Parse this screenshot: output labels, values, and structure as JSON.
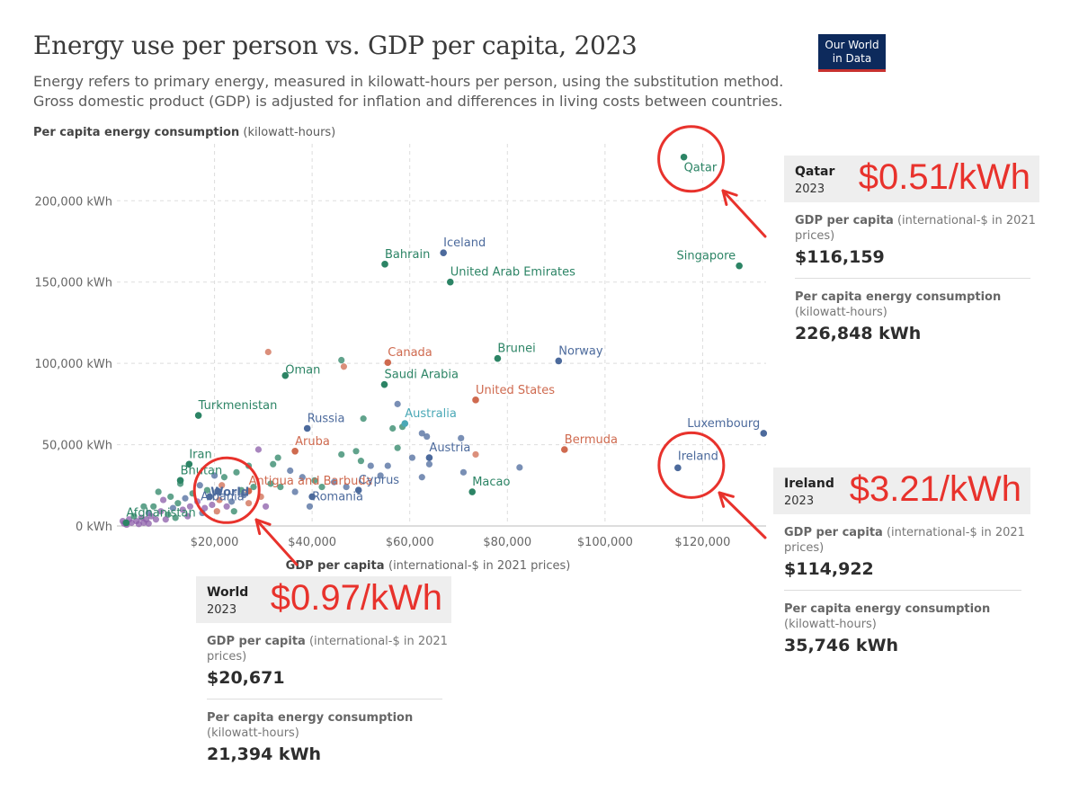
{
  "header": {
    "title": "Energy use per person vs. GDP per capita, 2023",
    "subtitle": "Energy refers to primary energy, measured in kilowatt-hours per person, using the substitution method. Gross domestic product (GDP) is adjusted for inflation and differences in living costs between countries.",
    "logo_line1": "Our World",
    "logo_line2": "in Data"
  },
  "chart_data": {
    "type": "scatter",
    "title": "Energy use per person vs. GDP per capita, 2023",
    "ylabel_bold": "Per capita energy consumption",
    "ylabel_rest": "(kilowatt-hours)",
    "xlabel_bold": "GDP per capita",
    "xlabel_rest": "(international-$ in 2021 prices)",
    "xlim": [
      0,
      133000
    ],
    "ylim": [
      0,
      235000
    ],
    "x_ticks": [
      20000,
      40000,
      60000,
      80000,
      100000,
      120000
    ],
    "x_tick_labels": [
      "$20,000",
      "$40,000",
      "$60,000",
      "$80,000",
      "$100,000",
      "$120,000"
    ],
    "y_ticks": [
      0,
      50000,
      100000,
      150000,
      200000
    ],
    "y_tick_labels": [
      "0 kWh",
      "50,000 kWh",
      "100,000 kWh",
      "150,000 kWh",
      "200,000 kWh"
    ],
    "grid": true,
    "colors": {
      "teal": "#2c8465",
      "blue": "#4c6a9c",
      "orange": "#cf6a4f",
      "lightblue": "#4aa8b6",
      "purple": "#8b5ca8"
    },
    "labeled_points": [
      {
        "name": "Qatar",
        "x": 116159,
        "y": 226848,
        "color": "teal"
      },
      {
        "name": "Bahrain",
        "x": 54900,
        "y": 161000,
        "color": "teal"
      },
      {
        "name": "Iceland",
        "x": 66900,
        "y": 168000,
        "color": "blue"
      },
      {
        "name": "United Arab Emirates",
        "x": 68300,
        "y": 150000,
        "color": "teal"
      },
      {
        "name": "Singapore",
        "x": 127500,
        "y": 160000,
        "color": "teal"
      },
      {
        "name": "Canada",
        "x": 55500,
        "y": 100500,
        "color": "orange"
      },
      {
        "name": "Brunei",
        "x": 78000,
        "y": 103000,
        "color": "teal"
      },
      {
        "name": "Norway",
        "x": 90500,
        "y": 101500,
        "color": "blue"
      },
      {
        "name": "Oman",
        "x": 34500,
        "y": 92500,
        "color": "teal"
      },
      {
        "name": "Saudi Arabia",
        "x": 54800,
        "y": 87000,
        "color": "teal"
      },
      {
        "name": "United States",
        "x": 73500,
        "y": 77500,
        "color": "orange"
      },
      {
        "name": "Turkmenistan",
        "x": 16700,
        "y": 68000,
        "color": "teal"
      },
      {
        "name": "Australia",
        "x": 59000,
        "y": 63000,
        "color": "lightblue"
      },
      {
        "name": "Russia",
        "x": 39000,
        "y": 60000,
        "color": "blue"
      },
      {
        "name": "Luxembourg",
        "x": 132500,
        "y": 57000,
        "color": "blue"
      },
      {
        "name": "Aruba",
        "x": 36500,
        "y": 46000,
        "color": "orange"
      },
      {
        "name": "Bermuda",
        "x": 91700,
        "y": 47000,
        "color": "orange"
      },
      {
        "name": "Austria",
        "x": 64000,
        "y": 42000,
        "color": "blue"
      },
      {
        "name": "Iran",
        "x": 14800,
        "y": 38000,
        "color": "teal"
      },
      {
        "name": "Ireland",
        "x": 114922,
        "y": 35746,
        "color": "blue"
      },
      {
        "name": "Antigua and Barbuda",
        "x": 27000,
        "y": 21500,
        "color": "orange"
      },
      {
        "name": "Bhutan",
        "x": 13000,
        "y": 28000,
        "color": "teal"
      },
      {
        "name": "Cyprus",
        "x": 49500,
        "y": 22000,
        "color": "blue"
      },
      {
        "name": "World",
        "x": 20671,
        "y": 21394,
        "color": "blue"
      },
      {
        "name": "Albania",
        "x": 19000,
        "y": 18000,
        "color": "blue"
      },
      {
        "name": "Romania",
        "x": 40000,
        "y": 18000,
        "color": "blue"
      },
      {
        "name": "Macao",
        "x": 72800,
        "y": 21000,
        "color": "teal"
      },
      {
        "name": "Afghanistan",
        "x": 1900,
        "y": 2000,
        "color": "teal"
      }
    ],
    "other_points": [
      [
        31000,
        107000,
        "orange"
      ],
      [
        46000,
        102000,
        "teal"
      ],
      [
        46500,
        98000,
        "orange"
      ],
      [
        57500,
        75000,
        "blue"
      ],
      [
        50500,
        66000,
        "teal"
      ],
      [
        58500,
        61000,
        "teal"
      ],
      [
        56500,
        60000,
        "teal"
      ],
      [
        62500,
        57000,
        "blue"
      ],
      [
        63500,
        55000,
        "blue"
      ],
      [
        70500,
        54000,
        "blue"
      ],
      [
        73500,
        44000,
        "orange"
      ],
      [
        64000,
        38000,
        "blue"
      ],
      [
        82500,
        36000,
        "blue"
      ],
      [
        71000,
        33000,
        "blue"
      ],
      [
        57500,
        48000,
        "teal"
      ],
      [
        46000,
        44000,
        "teal"
      ],
      [
        49000,
        46000,
        "teal"
      ],
      [
        50000,
        40000,
        "teal"
      ],
      [
        52000,
        37000,
        "blue"
      ],
      [
        55500,
        37000,
        "blue"
      ],
      [
        60500,
        42000,
        "blue"
      ],
      [
        62500,
        30000,
        "blue"
      ],
      [
        54000,
        31000,
        "blue"
      ],
      [
        47000,
        24000,
        "blue"
      ],
      [
        44500,
        27000,
        "blue"
      ],
      [
        40500,
        28000,
        "teal"
      ],
      [
        38000,
        30000,
        "blue"
      ],
      [
        35500,
        34000,
        "blue"
      ],
      [
        33000,
        42000,
        "teal"
      ],
      [
        32000,
        38000,
        "teal"
      ],
      [
        29000,
        47000,
        "purple"
      ],
      [
        27000,
        37000,
        "teal"
      ],
      [
        24500,
        33000,
        "teal"
      ],
      [
        22000,
        30000,
        "teal"
      ],
      [
        21500,
        25000,
        "orange"
      ],
      [
        25500,
        22000,
        "teal"
      ],
      [
        29500,
        18000,
        "orange"
      ],
      [
        31500,
        26000,
        "teal"
      ],
      [
        33500,
        24000,
        "teal"
      ],
      [
        36500,
        21000,
        "blue"
      ],
      [
        39500,
        12000,
        "blue"
      ],
      [
        42000,
        24000,
        "teal"
      ],
      [
        30500,
        12000,
        "purple"
      ],
      [
        27000,
        14000,
        "orange"
      ],
      [
        24000,
        9000,
        "teal"
      ],
      [
        23500,
        15000,
        "blue"
      ],
      [
        18500,
        22000,
        "teal"
      ],
      [
        17000,
        25000,
        "blue"
      ],
      [
        15500,
        20000,
        "teal"
      ],
      [
        14000,
        17000,
        "blue"
      ],
      [
        12500,
        14000,
        "teal"
      ],
      [
        11000,
        18000,
        "teal"
      ],
      [
        9500,
        16000,
        "purple"
      ],
      [
        8500,
        21000,
        "teal"
      ],
      [
        7500,
        12000,
        "teal"
      ],
      [
        6500,
        8000,
        "blue"
      ],
      [
        5500,
        12000,
        "teal"
      ],
      [
        5000,
        5000,
        "purple"
      ],
      [
        4000,
        3000,
        "purple"
      ],
      [
        3000,
        2000,
        "purple"
      ],
      [
        2500,
        4000,
        "purple"
      ],
      [
        3500,
        6000,
        "teal"
      ],
      [
        6000,
        4000,
        "purple"
      ],
      [
        7000,
        6000,
        "purple"
      ],
      [
        8000,
        4000,
        "purple"
      ],
      [
        9000,
        9000,
        "purple"
      ],
      [
        10500,
        7000,
        "teal"
      ],
      [
        11500,
        11000,
        "blue"
      ],
      [
        13500,
        10000,
        "purple"
      ],
      [
        15000,
        12000,
        "purple"
      ],
      [
        16500,
        15000,
        "purple"
      ],
      [
        18000,
        11000,
        "purple"
      ],
      [
        19500,
        13000,
        "purple"
      ],
      [
        20500,
        9000,
        "orange"
      ],
      [
        22500,
        12000,
        "purple"
      ],
      [
        1500,
        1500,
        "purple"
      ],
      [
        2000,
        800,
        "purple"
      ],
      [
        4500,
        1200,
        "purple"
      ],
      [
        5500,
        2000,
        "purple"
      ],
      [
        6500,
        1500,
        "purple"
      ],
      [
        1200,
        3000,
        "purple"
      ],
      [
        10000,
        4000,
        "purple"
      ],
      [
        12000,
        5000,
        "teal"
      ],
      [
        14500,
        6000,
        "purple"
      ],
      [
        17500,
        8000,
        "blue"
      ],
      [
        21000,
        16000,
        "orange"
      ],
      [
        26000,
        19000,
        "blue"
      ],
      [
        28000,
        24000,
        "teal"
      ],
      [
        13000,
        26000,
        "teal"
      ],
      [
        20000,
        31000,
        "blue"
      ]
    ]
  },
  "tooltips": {
    "qatar": {
      "name": "Qatar",
      "year": "2023",
      "price": "$0.51/kWh",
      "gdp_label_bold": "GDP per capita",
      "gdp_label_rest": "(international-$ in 2021 prices)",
      "gdp_value": "$116,159",
      "energy_label_bold": "Per capita energy consumption",
      "energy_label_rest": "(kilowatt-hours)",
      "energy_value": "226,848 kWh"
    },
    "ireland": {
      "name": "Ireland",
      "year": "2023",
      "price": "$3.21/kWh",
      "gdp_label_bold": "GDP per capita",
      "gdp_label_rest": "(international-$ in 2021 prices)",
      "gdp_value": "$114,922",
      "energy_label_bold": "Per capita energy consumption",
      "energy_label_rest": "(kilowatt-hours)",
      "energy_value": "35,746 kWh"
    },
    "world": {
      "name": "World",
      "year": "2023",
      "price": "$0.97/kWh",
      "gdp_label_bold": "GDP per capita",
      "gdp_label_rest": "(international-$ in 2021 prices)",
      "gdp_value": "$20,671",
      "energy_label_bold": "Per capita energy consumption",
      "energy_label_rest": "(kilowatt-hours)",
      "energy_value": "21,394 kWh"
    }
  },
  "annotations": {
    "circled": [
      "Qatar",
      "Ireland",
      "World"
    ],
    "annotation_color": "#e8322c"
  }
}
